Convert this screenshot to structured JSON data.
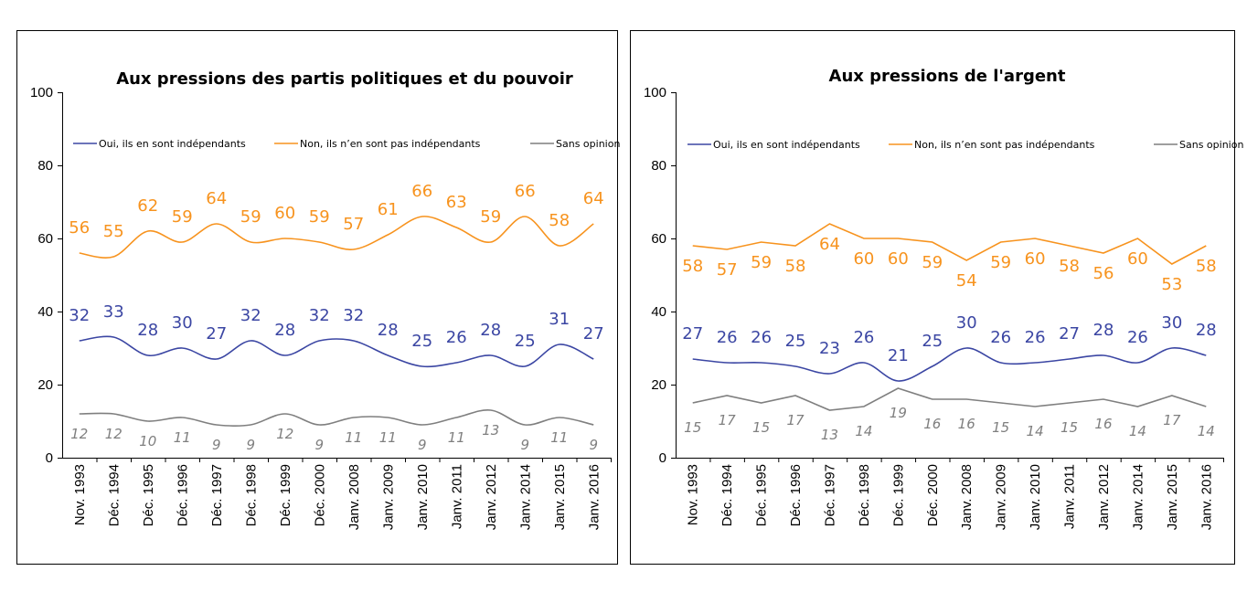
{
  "chart_data": [
    {
      "type": "line",
      "title": "Aux pressions des partis politiques et du pouvoir",
      "categories": [
        "Nov. 1993",
        "Déc. 1994",
        "Déc. 1995",
        "Déc. 1996",
        "Déc. 1997",
        "Déc. 1998",
        "Déc. 1999",
        "Déc. 2000",
        "Janv. 2008",
        "Janv. 2009",
        "Janv. 2010",
        "Janv. 2011",
        "Janv. 2012",
        "Janv. 2014",
        "Janv. 2015",
        "Janv. 2016"
      ],
      "ylim": [
        0,
        100
      ],
      "yticks": [
        0,
        20,
        40,
        60,
        80,
        100
      ],
      "grid": false,
      "legend": "top",
      "series": [
        {
          "name": "Oui, ils en sont indépendants",
          "color": "#3B46A3",
          "values": [
            32,
            33,
            28,
            30,
            27,
            32,
            28,
            32,
            32,
            28,
            25,
            26,
            28,
            25,
            31,
            27
          ]
        },
        {
          "name": "Non, ils n’en sont pas indépendants",
          "color": "#F7931E",
          "values": [
            56,
            55,
            62,
            59,
            64,
            59,
            60,
            59,
            57,
            61,
            66,
            63,
            59,
            66,
            58,
            64
          ]
        },
        {
          "name": "Sans opinion",
          "color": "#7F7F7F",
          "values": [
            12,
            12,
            10,
            11,
            9,
            9,
            12,
            9,
            11,
            11,
            9,
            11,
            13,
            9,
            11,
            9
          ]
        }
      ]
    },
    {
      "type": "line",
      "title": "Aux  pressions de l'argent",
      "categories": [
        "Nov. 1993",
        "Déc. 1994",
        "Déc. 1995",
        "Déc. 1996",
        "Déc. 1997",
        "Déc. 1998",
        "Déc. 1999",
        "Déc. 2000",
        "Janv. 2008",
        "Janv. 2009",
        "Janv. 2010",
        "Janv. 2011",
        "Janv. 2012",
        "Janv. 2014",
        "Janv. 2015",
        "Janv. 2016"
      ],
      "ylim": [
        0,
        100
      ],
      "yticks": [
        0,
        20,
        40,
        60,
        80,
        100
      ],
      "grid": false,
      "legend": "top",
      "series": [
        {
          "name": "Oui, ils en sont indépendants",
          "color": "#3B46A3",
          "values": [
            27,
            26,
            26,
            25,
            23,
            26,
            21,
            25,
            30,
            26,
            26,
            27,
            28,
            26,
            30,
            28
          ]
        },
        {
          "name": "Non, ils n’en sont pas indépendants",
          "color": "#F7931E",
          "values": [
            58,
            57,
            59,
            58,
            64,
            60,
            60,
            59,
            54,
            59,
            60,
            58,
            56,
            60,
            53,
            58
          ]
        },
        {
          "name": "Sans opinion",
          "color": "#7F7F7F",
          "values": [
            15,
            17,
            15,
            17,
            13,
            14,
            19,
            16,
            16,
            15,
            14,
            15,
            16,
            14,
            17,
            14
          ]
        }
      ]
    }
  ]
}
